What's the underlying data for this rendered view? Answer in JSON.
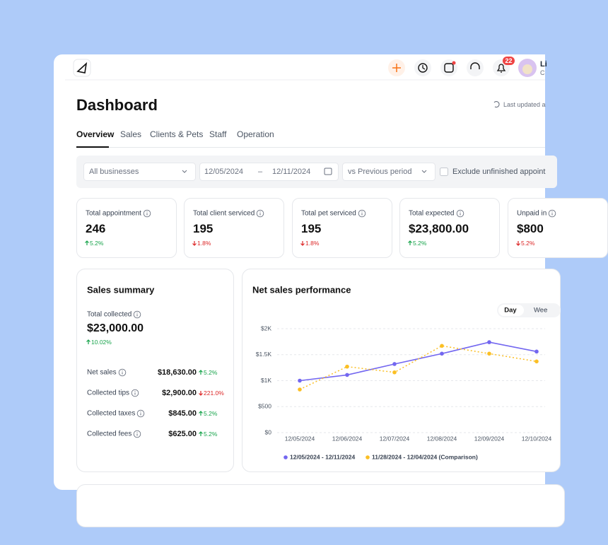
{
  "topbar": {
    "notification_count": "22",
    "user_name": "Li",
    "user_role": "C"
  },
  "header": {
    "title": "Dashboard",
    "last_updated": "Last updated a"
  },
  "tabs": [
    "Overview",
    "Sales",
    "Clients & Pets",
    "Staff",
    "Operation"
  ],
  "filters": {
    "business": "All businesses",
    "start_date": "12/05/2024",
    "separator": "–",
    "end_date": "12/11/2024",
    "comparison": "vs Previous period",
    "exclude": "Exclude unfinished appoint"
  },
  "stats": [
    {
      "label": "Total appointment",
      "value": "246",
      "change": "5.2%",
      "direction": "up"
    },
    {
      "label": "Total client serviced",
      "value": "195",
      "change": "1.8%",
      "direction": "down"
    },
    {
      "label": "Total pet serviced",
      "value": "195",
      "change": "1.8%",
      "direction": "down"
    },
    {
      "label": "Total expected",
      "value": "$23,800.00",
      "change": "5.2%",
      "direction": "up"
    },
    {
      "label": "Unpaid in",
      "value": "$800",
      "change": "5.2%",
      "direction": "down"
    }
  ],
  "sales_summary": {
    "title": "Sales summary",
    "total_label": "Total collected",
    "total_value": "$23,000.00",
    "total_change": "10.02%",
    "total_direction": "up",
    "rows": [
      {
        "label": "Net sales",
        "value": "$18,630.00",
        "change": "5.2%",
        "direction": "up"
      },
      {
        "label": "Collected tips",
        "value": "$2,900.00",
        "change": "221.0%",
        "direction": "down"
      },
      {
        "label": "Collected taxes",
        "value": "$845.00",
        "change": "5.2%",
        "direction": "up"
      },
      {
        "label": "Collected fees",
        "value": "$625.00",
        "change": "5.2%",
        "direction": "up"
      }
    ]
  },
  "period_toggle": [
    "Day",
    "Wee"
  ],
  "chart_data": {
    "type": "line",
    "title": "Net sales performance",
    "categories": [
      "12/05/2024",
      "12/06/2024",
      "12/07/2024",
      "12/08/2024",
      "12/09/2024",
      "12/10/2024"
    ],
    "series": [
      {
        "name": "12/05/2024 - 12/11/2024",
        "color": "#7367f0",
        "dashed": false,
        "values": [
          1000,
          1110,
          1320,
          1520,
          1740,
          1560
        ]
      },
      {
        "name": "11/28/2024 - 12/04/2024 (Comparison)",
        "color": "#fbbf24",
        "dashed": true,
        "values": [
          830,
          1270,
          1160,
          1670,
          1520,
          1370
        ]
      }
    ],
    "ylim": [
      0,
      2000
    ],
    "yticks": [
      {
        "value": 0,
        "label": "$0"
      },
      {
        "value": 500,
        "label": "$500"
      },
      {
        "value": 1000,
        "label": "$1K"
      },
      {
        "value": 1500,
        "label": "$1.5K"
      },
      {
        "value": 2000,
        "label": "$2K"
      }
    ],
    "grid": true
  }
}
